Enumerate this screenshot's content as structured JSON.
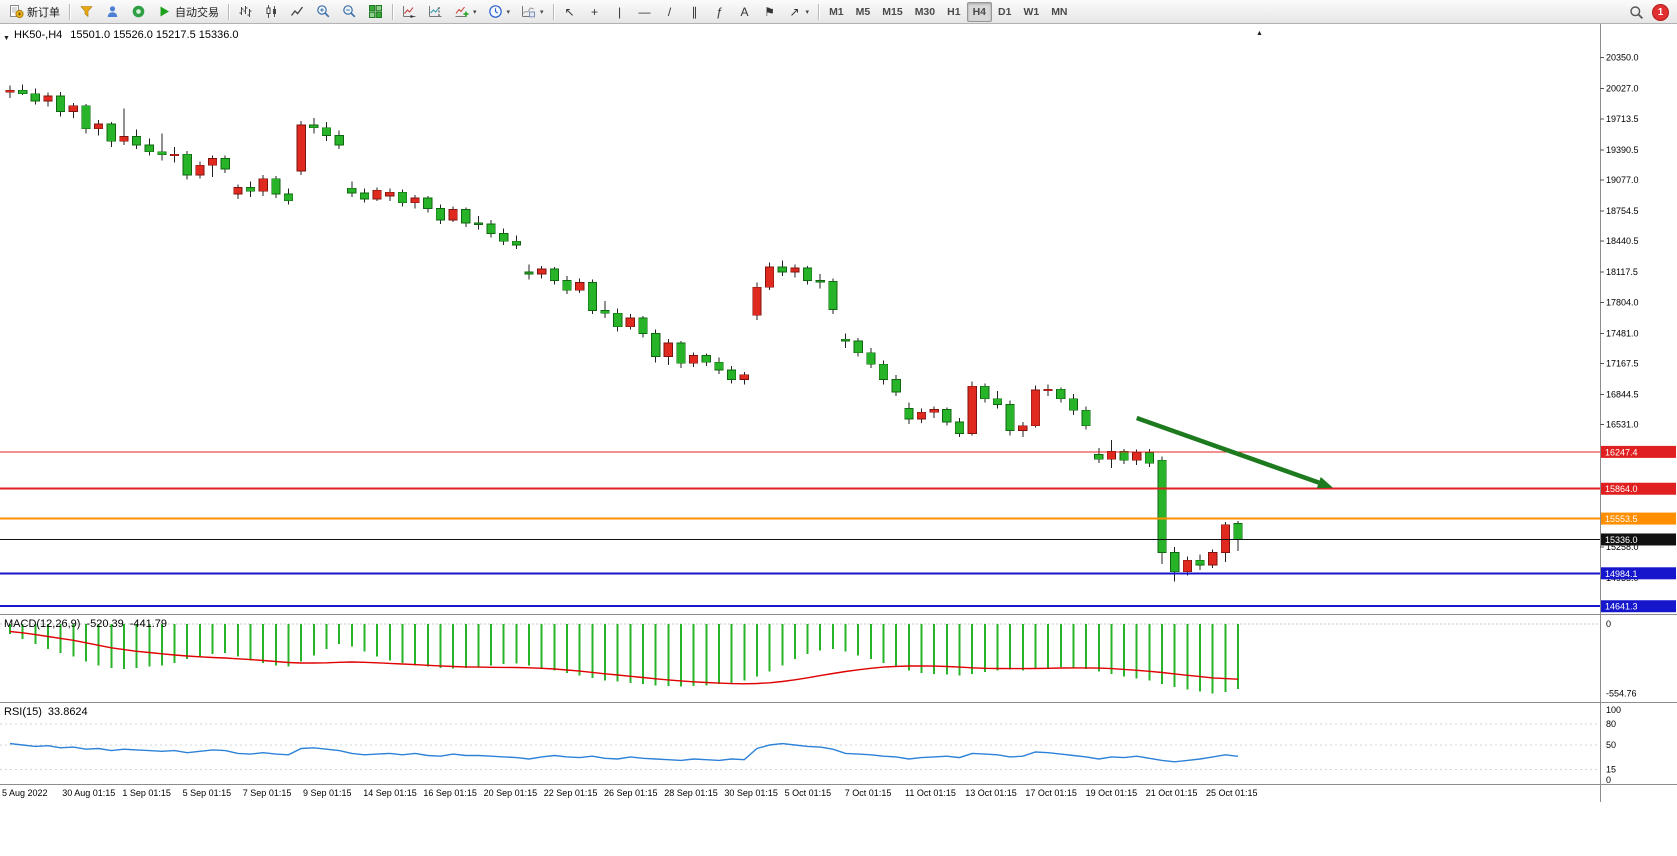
{
  "toolbar": {
    "new_order_label": "新订单",
    "autotrading_label": "自动交易",
    "timeframes": [
      "M1",
      "M5",
      "M15",
      "M30",
      "H1",
      "H4",
      "D1",
      "W1",
      "MN"
    ],
    "active_timeframe": "H4",
    "notification_count": "1",
    "draw_tools": [
      {
        "name": "cursor",
        "glyph": "↖"
      },
      {
        "name": "crosshair",
        "glyph": "+"
      },
      {
        "name": "vertical-line",
        "glyph": "|"
      },
      {
        "name": "horizontal-line",
        "glyph": "—"
      },
      {
        "name": "trendline",
        "glyph": "/"
      },
      {
        "name": "equidistant-channel",
        "glyph": "∥"
      },
      {
        "name": "fibonacci",
        "glyph": "ƒ"
      },
      {
        "name": "text",
        "glyph": "A"
      },
      {
        "name": "label",
        "glyph": "⚑"
      },
      {
        "name": "arrows",
        "glyph": "↗"
      }
    ]
  },
  "chart_data": {
    "type": "candlestick",
    "symbol_period": "HK50-,H4",
    "ohlc_text": "15501.0 15526.0 15217.5 15336.0",
    "bull_color": "#e02a20",
    "bear_color": "#28b428",
    "wick_color": "#222222",
    "price_axis_ticks": [
      20350.0,
      20027.0,
      19713.5,
      19390.5,
      19077.0,
      18754.5,
      18440.5,
      18117.5,
      17804.0,
      17481.0,
      17167.5,
      16844.5,
      16531.0,
      15258.0,
      14935.0
    ],
    "hlines": [
      {
        "price": 16247.4,
        "label": "16247.4",
        "color": "#e02020",
        "width": 1.2
      },
      {
        "price": 15864.0,
        "label": "15864.0",
        "color": "#e02020",
        "width": 2
      },
      {
        "price": 15553.5,
        "label": "15553.5",
        "color": "#ff8e00",
        "width": 2
      },
      {
        "price": 15336.0,
        "label": "15336.0",
        "color": "#111111",
        "width": 1
      },
      {
        "price": 14984.1,
        "label": "14984.1",
        "color": "#1616cc",
        "width": 2
      },
      {
        "price": 14641.3,
        "label": "14641.3",
        "color": "#1616cc",
        "width": 2
      }
    ],
    "candles": [
      [
        19990,
        20060,
        19930,
        20010
      ],
      [
        20010,
        20070,
        19960,
        19975
      ],
      [
        19975,
        20030,
        19860,
        19900
      ],
      [
        19900,
        19985,
        19840,
        19950
      ],
      [
        19950,
        19990,
        19740,
        19790
      ],
      [
        19790,
        19880,
        19720,
        19850
      ],
      [
        19850,
        19870,
        19560,
        19610
      ],
      [
        19610,
        19700,
        19540,
        19660
      ],
      [
        19660,
        19680,
        19420,
        19480
      ],
      [
        19480,
        19820,
        19440,
        19530
      ],
      [
        19530,
        19600,
        19400,
        19440
      ],
      [
        19440,
        19510,
        19330,
        19370
      ],
      [
        19370,
        19560,
        19280,
        19340
      ],
      [
        19340,
        19420,
        19260,
        19345
      ],
      [
        19345,
        19380,
        19080,
        19130
      ],
      [
        19130,
        19270,
        19090,
        19230
      ],
      [
        19230,
        19330,
        19110,
        19300
      ],
      [
        19300,
        19330,
        19150,
        19190
      ],
      [
        18930,
        19030,
        18880,
        19000
      ],
      [
        19000,
        19060,
        18900,
        18960
      ],
      [
        18960,
        19130,
        18910,
        19090
      ],
      [
        19090,
        19120,
        18890,
        18930
      ],
      [
        18930,
        18990,
        18820,
        18860
      ],
      [
        19170,
        19690,
        19130,
        19650
      ],
      [
        19650,
        19720,
        19560,
        19620
      ],
      [
        19620,
        19680,
        19480,
        19540
      ],
      [
        19540,
        19590,
        19400,
        19440
      ],
      [
        18990,
        19060,
        18900,
        18940
      ],
      [
        18940,
        18990,
        18840,
        18880
      ],
      [
        18880,
        19000,
        18860,
        18970
      ],
      [
        18910,
        18990,
        18860,
        18950
      ],
      [
        18950,
        18980,
        18800,
        18840
      ],
      [
        18840,
        18920,
        18780,
        18890
      ],
      [
        18890,
        18910,
        18740,
        18780
      ],
      [
        18780,
        18820,
        18620,
        18660
      ],
      [
        18660,
        18800,
        18640,
        18770
      ],
      [
        18770,
        18790,
        18590,
        18630
      ],
      [
        18630,
        18700,
        18560,
        18620
      ],
      [
        18620,
        18660,
        18480,
        18520
      ],
      [
        18520,
        18570,
        18400,
        18440
      ],
      [
        18440,
        18500,
        18360,
        18400
      ],
      [
        18120,
        18200,
        18040,
        18100
      ],
      [
        18100,
        18180,
        18050,
        18150
      ],
      [
        18150,
        18170,
        17990,
        18030
      ],
      [
        18030,
        18080,
        17890,
        17930
      ],
      [
        17930,
        18050,
        17900,
        18010
      ],
      [
        18010,
        18040,
        17680,
        17720
      ],
      [
        17720,
        17820,
        17640,
        17690
      ],
      [
        17690,
        17740,
        17500,
        17550
      ],
      [
        17550,
        17680,
        17520,
        17640
      ],
      [
        17640,
        17660,
        17440,
        17480
      ],
      [
        17480,
        17520,
        17180,
        17240
      ],
      [
        17240,
        17420,
        17150,
        17380
      ],
      [
        17380,
        17400,
        17120,
        17170
      ],
      [
        17170,
        17280,
        17130,
        17250
      ],
      [
        17250,
        17270,
        17140,
        17180
      ],
      [
        17180,
        17230,
        17060,
        17100
      ],
      [
        17100,
        17140,
        16960,
        17000
      ],
      [
        17000,
        17080,
        16950,
        17050
      ],
      [
        17670,
        18010,
        17620,
        17960
      ],
      [
        17960,
        18220,
        17930,
        18170
      ],
      [
        18170,
        18240,
        18080,
        18120
      ],
      [
        18120,
        18200,
        18060,
        18160
      ],
      [
        18160,
        18180,
        17990,
        18030
      ],
      [
        18030,
        18100,
        17950,
        18020
      ],
      [
        18020,
        18050,
        17680,
        17730
      ],
      [
        17420,
        17480,
        17330,
        17400
      ],
      [
        17400,
        17430,
        17240,
        17280
      ],
      [
        17280,
        17330,
        17120,
        17160
      ],
      [
        17160,
        17200,
        16950,
        17000
      ],
      [
        17000,
        17050,
        16830,
        16870
      ],
      [
        16700,
        16760,
        16540,
        16590
      ],
      [
        16590,
        16700,
        16550,
        16660
      ],
      [
        16660,
        16720,
        16600,
        16690
      ],
      [
        16690,
        16710,
        16520,
        16560
      ],
      [
        16560,
        16600,
        16400,
        16440
      ],
      [
        16440,
        16980,
        16420,
        16930
      ],
      [
        16930,
        16960,
        16760,
        16800
      ],
      [
        16800,
        16880,
        16700,
        16740
      ],
      [
        16740,
        16780,
        16420,
        16470
      ],
      [
        16470,
        16560,
        16400,
        16520
      ],
      [
        16520,
        16940,
        16500,
        16890
      ],
      [
        16890,
        16950,
        16830,
        16900
      ],
      [
        16900,
        16920,
        16760,
        16800
      ],
      [
        16800,
        16850,
        16630,
        16680
      ],
      [
        16680,
        16720,
        16480,
        16520
      ],
      [
        16220,
        16290,
        16130,
        16170
      ],
      [
        16170,
        16370,
        16080,
        16250
      ],
      [
        16250,
        16280,
        16120,
        16160
      ],
      [
        16160,
        16270,
        16110,
        16240
      ],
      [
        16240,
        16280,
        16090,
        16130
      ],
      [
        16160,
        16200,
        15080,
        15200
      ],
      [
        15200,
        15260,
        14900,
        15000
      ],
      [
        15000,
        15160,
        14960,
        15120
      ],
      [
        15120,
        15180,
        15020,
        15070
      ],
      [
        15070,
        15230,
        15040,
        15200
      ],
      [
        15200,
        15520,
        15100,
        15490
      ],
      [
        15501,
        15526,
        15217.5,
        15336
      ]
    ],
    "trend_arrow": {
      "from_index": 89,
      "from_price": 16600,
      "to_index": 104.5,
      "to_price": 15875,
      "color": "#1e7a1e"
    },
    "macd": {
      "label": "MACD(12,26,9)",
      "value_main": "-520.39",
      "value_signal": "-441.79",
      "hist_color": "#28b428",
      "signal_color": "#e00000",
      "scale_labels": [
        "0",
        "-554.76"
      ],
      "hist": [
        -80,
        -120,
        -160,
        -200,
        -230,
        -260,
        -300,
        -330,
        -350,
        -360,
        -350,
        -340,
        -330,
        -310,
        -280,
        -260,
        -240,
        -230,
        -260,
        -290,
        -310,
        -330,
        -340,
        -300,
        -250,
        -200,
        -160,
        -180,
        -220,
        -260,
        -290,
        -310,
        -330,
        -340,
        -350,
        -355,
        -350,
        -340,
        -330,
        -320,
        -315,
        -330,
        -350,
        -370,
        -390,
        -410,
        -430,
        -450,
        -460,
        -470,
        -480,
        -490,
        -495,
        -500,
        -495,
        -490,
        -480,
        -470,
        -450,
        -420,
        -380,
        -330,
        -280,
        -240,
        -210,
        -200,
        -220,
        -250,
        -280,
        -310,
        -340,
        -370,
        -390,
        -400,
        -405,
        -410,
        -400,
        -385,
        -370,
        -365,
        -370,
        -360,
        -350,
        -345,
        -350,
        -360,
        -380,
        -400,
        -420,
        -435,
        -450,
        -480,
        -505,
        -525,
        -540,
        -554.76,
        -545,
        -520.39
      ],
      "signal": [
        -60,
        -70,
        -85,
        -100,
        -115,
        -130,
        -150,
        -170,
        -190,
        -205,
        -218,
        -228,
        -238,
        -248,
        -256,
        -262,
        -268,
        -272,
        -278,
        -285,
        -292,
        -300,
        -308,
        -312,
        -312,
        -310,
        -306,
        -304,
        -306,
        -310,
        -315,
        -320,
        -325,
        -330,
        -335,
        -340,
        -343,
        -345,
        -346,
        -347,
        -348,
        -350,
        -354,
        -360,
        -368,
        -377,
        -387,
        -398,
        -408,
        -418,
        -428,
        -438,
        -447,
        -455,
        -462,
        -468,
        -473,
        -477,
        -478,
        -476,
        -470,
        -460,
        -446,
        -430,
        -413,
        -396,
        -380,
        -366,
        -354,
        -345,
        -339,
        -336,
        -335,
        -337,
        -340,
        -345,
        -350,
        -354,
        -356,
        -357,
        -357,
        -356,
        -354,
        -352,
        -351,
        -351,
        -353,
        -357,
        -363,
        -370,
        -378,
        -388,
        -399,
        -410,
        -421,
        -431,
        -437,
        -441.79
      ]
    },
    "rsi": {
      "label": "RSI(15)",
      "value": "33.8624",
      "line_color": "#2d82d8",
      "levels": [
        100,
        80,
        50,
        15,
        0
      ],
      "values": [
        52,
        50,
        48,
        49,
        46,
        47,
        44,
        45,
        42,
        44,
        43,
        42,
        41,
        42,
        39,
        41,
        43,
        42,
        38,
        37,
        39,
        37,
        36,
        45,
        46,
        44,
        42,
        38,
        36,
        37,
        38,
        36,
        38,
        35,
        34,
        37,
        35,
        35,
        34,
        33,
        32,
        30,
        33,
        35,
        33,
        32,
        34,
        31,
        30,
        33,
        31,
        30,
        29,
        28,
        30,
        29,
        28,
        30,
        29,
        45,
        50,
        52,
        50,
        48,
        47,
        44,
        38,
        37,
        36,
        34,
        33,
        30,
        32,
        33,
        34,
        32,
        38,
        37,
        36,
        33,
        34,
        40,
        39,
        37,
        35,
        33,
        30,
        33,
        32,
        34,
        31,
        28,
        26,
        28,
        30,
        33,
        36,
        33.86
      ]
    },
    "time_labels": [
      "5 Aug 2022",
      "30 Aug 01:15",
      "1 Sep 01:15",
      "5 Sep 01:15",
      "7 Sep 01:15",
      "9 Sep 01:15",
      "14 Sep 01:15",
      "16 Sep 01:15",
      "20 Sep 01:15",
      "22 Sep 01:15",
      "26 Sep 01:15",
      "28 Sep 01:15",
      "30 Sep 01:15",
      "5 Oct 01:15",
      "7 Oct 01:15",
      "11 Oct 01:15",
      "13 Oct 01:15",
      "17 Oct 01:15",
      "19 Oct 01:15",
      "21 Oct 01:15",
      "25 Oct 01:15"
    ]
  }
}
